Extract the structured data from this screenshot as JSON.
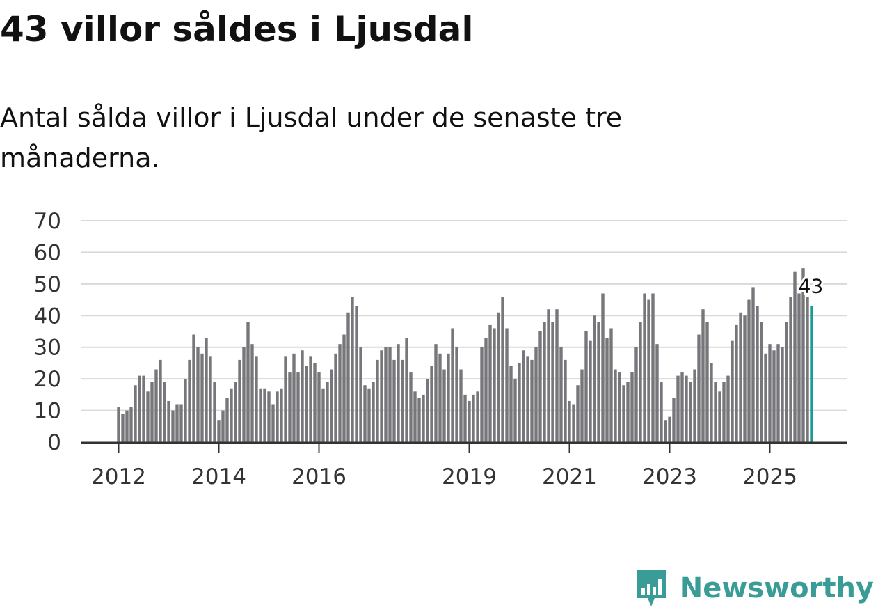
{
  "header": {
    "title": "43 villor såldes i Ljusdal",
    "subtitle": "Antal sålda villor i Ljusdal under de senaste tre månaderna."
  },
  "brand": {
    "name": "Newsworthy",
    "icon": "newsworthy-logo-icon",
    "color": "#3a9c96"
  },
  "colors": {
    "bar": "#77767b",
    "highlight": "#1a9c94",
    "grid": "#d9d9d9",
    "axis": "#333333"
  },
  "chart_data": {
    "type": "bar",
    "title": "43 villor såldes i Ljusdal",
    "subtitle": "Antal sålda villor i Ljusdal under de senaste tre månaderna.",
    "xlabel": "",
    "ylabel": "",
    "ylim": [
      0,
      70
    ],
    "yticks": [
      "0",
      "10",
      "20",
      "30",
      "40",
      "50",
      "60",
      "70"
    ],
    "grid": true,
    "start": "2012-01",
    "xticks": [
      {
        "label": "2012",
        "index": 0
      },
      {
        "label": "2014",
        "index": 24
      },
      {
        "label": "2016",
        "index": 48
      },
      {
        "label": "2019",
        "index": 84
      },
      {
        "label": "2021",
        "index": 108
      },
      {
        "label": "2023",
        "index": 132
      },
      {
        "label": "2025",
        "index": 156
      }
    ],
    "values": [
      11,
      9,
      10,
      11,
      18,
      21,
      21,
      16,
      19,
      23,
      26,
      19,
      13,
      10,
      12,
      12,
      20,
      26,
      34,
      30,
      28,
      33,
      27,
      19,
      7,
      10,
      14,
      17,
      19,
      26,
      30,
      38,
      31,
      27,
      17,
      17,
      16,
      12,
      16,
      17,
      27,
      22,
      28,
      22,
      29,
      24,
      27,
      25,
      22,
      17,
      19,
      23,
      28,
      31,
      34,
      41,
      46,
      43,
      30,
      18,
      17,
      19,
      26,
      29,
      30,
      30,
      26,
      31,
      26,
      33,
      22,
      16,
      14,
      15,
      20,
      24,
      31,
      28,
      23,
      28,
      36,
      30,
      23,
      15,
      13,
      15,
      16,
      30,
      33,
      37,
      36,
      41,
      46,
      36,
      24,
      20,
      25,
      29,
      27,
      26,
      30,
      35,
      38,
      42,
      38,
      42,
      30,
      26,
      13,
      12,
      18,
      23,
      35,
      32,
      40,
      38,
      47,
      33,
      36,
      23,
      22,
      18,
      19,
      22,
      30,
      38,
      47,
      45,
      47,
      31,
      19,
      7,
      8,
      14,
      21,
      22,
      21,
      19,
      23,
      34,
      42,
      38,
      25,
      19,
      16,
      19,
      21,
      32,
      37,
      41,
      40,
      45,
      49,
      43,
      38,
      28,
      31,
      29,
      31,
      30,
      38,
      46,
      54,
      47,
      55,
      46,
      43
    ],
    "highlight_index": 166,
    "highlight_label": "43"
  }
}
